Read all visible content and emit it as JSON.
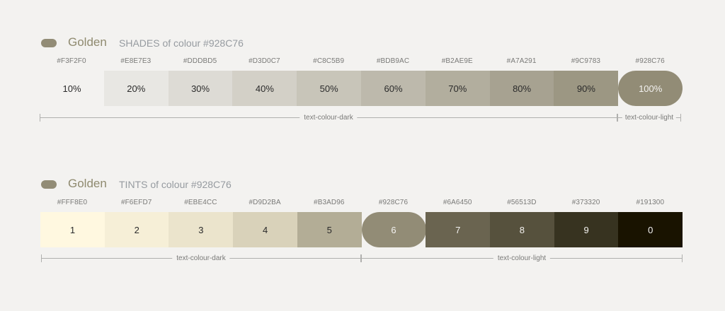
{
  "colors": {
    "page_bg": "#f3f2f0",
    "title_name": "#8f8a6f",
    "subtitle": "#969ba0"
  },
  "shades": {
    "icon": "pill-swatch-icon",
    "icon_color": "#928C76",
    "title": "Golden",
    "subtitle": "SHADES of colour #928C76",
    "swatches": [
      {
        "hex": "#F3F2F0",
        "label": "10%",
        "text": "#2b2b2b"
      },
      {
        "hex": "#E8E7E3",
        "label": "20%",
        "text": "#2b2b2b"
      },
      {
        "hex": "#DDDBD5",
        "label": "30%",
        "text": "#2b2b2b"
      },
      {
        "hex": "#D3D0C7",
        "label": "40%",
        "text": "#2b2b2b"
      },
      {
        "hex": "#C8C5B9",
        "label": "50%",
        "text": "#2b2b2b"
      },
      {
        "hex": "#BDB9AC",
        "label": "60%",
        "text": "#2b2b2b"
      },
      {
        "hex": "#B2AE9E",
        "label": "70%",
        "text": "#2b2b2b"
      },
      {
        "hex": "#A7A291",
        "label": "80%",
        "text": "#2b2b2b"
      },
      {
        "hex": "#9C9783",
        "label": "90%",
        "text": "#2b2b2b"
      },
      {
        "hex": "#928C76",
        "label": "100%",
        "text": "#f3f2f0",
        "base": true
      }
    ],
    "dark_label": "text-colour-dark",
    "light_label": "text-colour-light"
  },
  "tints": {
    "icon": "pill-swatch-icon",
    "icon_color": "#928C76",
    "title": "Golden",
    "subtitle": "TINTS of colour #928C76",
    "swatches": [
      {
        "hex": "#FFF8E0",
        "label": "1",
        "text": "#2b2b2b"
      },
      {
        "hex": "#F6EFD7",
        "label": "2",
        "text": "#2b2b2b"
      },
      {
        "hex": "#EBE4CC",
        "label": "3",
        "text": "#2b2b2b"
      },
      {
        "hex": "#D9D2BA",
        "label": "4",
        "text": "#2b2b2b"
      },
      {
        "hex": "#B3AD96",
        "label": "5",
        "text": "#2b2b2b"
      },
      {
        "hex": "#928C76",
        "label": "6",
        "text": "#f3f2f0",
        "base": true
      },
      {
        "hex": "#6A6450",
        "label": "7",
        "text": "#f3f2f0"
      },
      {
        "hex": "#56513D",
        "label": "8",
        "text": "#f3f2f0"
      },
      {
        "hex": "#373320",
        "label": "9",
        "text": "#f3f2f0"
      },
      {
        "hex": "#191300",
        "label": "0",
        "text": "#f3f2f0"
      }
    ],
    "dark_label": "text-colour-dark",
    "light_label": "text-colour-light"
  }
}
